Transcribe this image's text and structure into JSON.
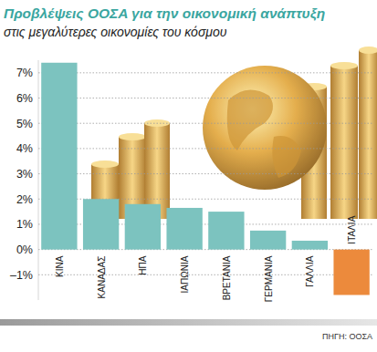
{
  "chart_data": {
    "type": "bar",
    "title": "Προβλέψεις ΟΟΣΑ για την οικονομική ανάπτυξη",
    "subtitle": "στις μεγαλύτερες οικονομίες του κόσμου",
    "source": "ΠΗΓΗ: ΟΟΣΑ",
    "categories": [
      "ΚΙΝΑ",
      "ΚΑΝΑΔΑΣ",
      "ΗΠΑ",
      "ΙΑΠΩΝΙΑ",
      "ΒΡΕΤΑΝΙΑ",
      "ΓΕΡΜΑΝΙΑ",
      "ΓΑΛΛΙΑ",
      "ΙΤΑΛΙΑ"
    ],
    "values": [
      7.4,
      2.0,
      1.8,
      1.65,
      1.5,
      0.75,
      0.35,
      -1.8
    ],
    "colors": [
      "#7cc3bf",
      "#7cc3bf",
      "#7cc3bf",
      "#7cc3bf",
      "#7cc3bf",
      "#7cc3bf",
      "#7cc3bf",
      "#ec8a3c"
    ],
    "ylim": [
      -2,
      7.5
    ],
    "yticks": [
      {
        "value": -1,
        "label": "–1%"
      },
      {
        "value": 0,
        "label": "0%"
      },
      {
        "value": 1,
        "label": "1%"
      },
      {
        "value": 2,
        "label": "2%"
      },
      {
        "value": 3,
        "label": "3%"
      },
      {
        "value": 4,
        "label": "4%"
      },
      {
        "value": 5,
        "label": "5%"
      },
      {
        "value": 6,
        "label": "6%"
      },
      {
        "value": 7,
        "label": "7%"
      }
    ],
    "grid": true
  }
}
